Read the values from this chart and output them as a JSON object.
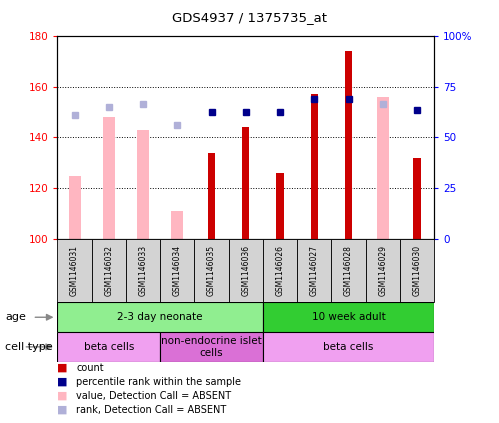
{
  "title": "GDS4937 / 1375735_at",
  "samples": [
    "GSM1146031",
    "GSM1146032",
    "GSM1146033",
    "GSM1146034",
    "GSM1146035",
    "GSM1146036",
    "GSM1146026",
    "GSM1146027",
    "GSM1146028",
    "GSM1146029",
    "GSM1146030"
  ],
  "count_values": [
    null,
    null,
    null,
    null,
    134,
    144,
    126,
    157,
    174,
    null,
    132
  ],
  "rank_values": [
    null,
    null,
    null,
    null,
    150,
    150,
    150,
    155,
    155,
    null,
    151
  ],
  "absent_value": [
    125,
    148,
    143,
    111,
    null,
    null,
    null,
    null,
    null,
    156,
    null
  ],
  "absent_rank": [
    149,
    152,
    153,
    145,
    null,
    null,
    null,
    null,
    null,
    153,
    null
  ],
  "ylim_left": [
    100,
    180
  ],
  "ylim_right": [
    0,
    100
  ],
  "yticks_left": [
    100,
    120,
    140,
    160,
    180
  ],
  "yticks_right": [
    0,
    25,
    50,
    75,
    100
  ],
  "yticklabels_right": [
    "0",
    "25",
    "50",
    "75",
    "100%"
  ],
  "age_groups": [
    {
      "label": "2-3 day neonate",
      "start": 0,
      "end": 6,
      "color": "#90ee90"
    },
    {
      "label": "10 week adult",
      "start": 6,
      "end": 11,
      "color": "#32cd32"
    }
  ],
  "cell_type_groups": [
    {
      "label": "beta cells",
      "start": 0,
      "end": 3,
      "color": "#f0a0f0"
    },
    {
      "label": "non-endocrine islet\ncells",
      "start": 3,
      "end": 6,
      "color": "#da70d6"
    },
    {
      "label": "beta cells",
      "start": 6,
      "end": 11,
      "color": "#f0a0f0"
    }
  ],
  "count_color": "#cc0000",
  "rank_color": "#00008b",
  "absent_value_color": "#ffb6c1",
  "absent_rank_color": "#b0b0d8",
  "legend_items": [
    {
      "color": "#cc0000",
      "label": "count"
    },
    {
      "color": "#00008b",
      "label": "percentile rank within the sample"
    },
    {
      "color": "#ffb6c1",
      "label": "value, Detection Call = ABSENT"
    },
    {
      "color": "#b0b0d8",
      "label": "rank, Detection Call = ABSENT"
    }
  ]
}
